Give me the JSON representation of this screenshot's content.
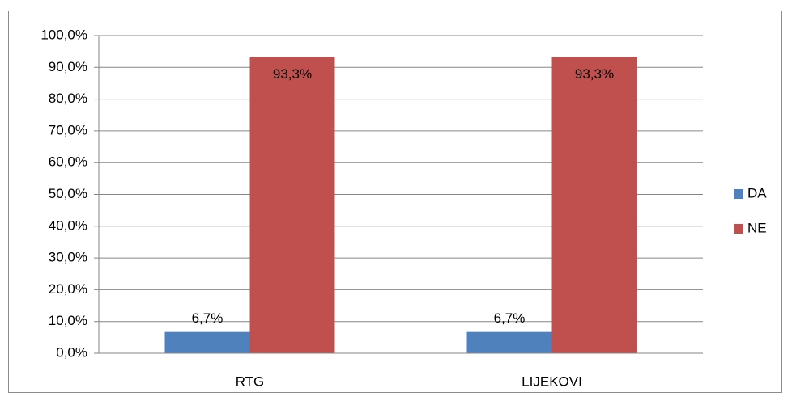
{
  "chart_data": {
    "type": "bar",
    "categories": [
      "RTG",
      "LIJEKOVI"
    ],
    "series": [
      {
        "name": "DA",
        "color": "#4f81bd",
        "values": [
          6.7,
          6.7
        ],
        "value_labels": [
          "6,7%",
          "6,7%"
        ]
      },
      {
        "name": "NE",
        "color": "#c0504d",
        "values": [
          93.3,
          93.3
        ],
        "value_labels": [
          "93,3%",
          "93,3%"
        ]
      }
    ],
    "ylim": [
      0,
      100
    ],
    "yticks": [
      {
        "value": 0,
        "label": "0,0%"
      },
      {
        "value": 10,
        "label": "10,0%"
      },
      {
        "value": 20,
        "label": "20,0%"
      },
      {
        "value": 30,
        "label": "30,0%"
      },
      {
        "value": 40,
        "label": "40,0%"
      },
      {
        "value": 50,
        "label": "50,0%"
      },
      {
        "value": 60,
        "label": "60,0%"
      },
      {
        "value": 70,
        "label": "70,0%"
      },
      {
        "value": 80,
        "label": "80,0%"
      },
      {
        "value": 90,
        "label": "90,0%"
      },
      {
        "value": 100,
        "label": "100,0%"
      }
    ],
    "grid": true,
    "legend": "right"
  }
}
